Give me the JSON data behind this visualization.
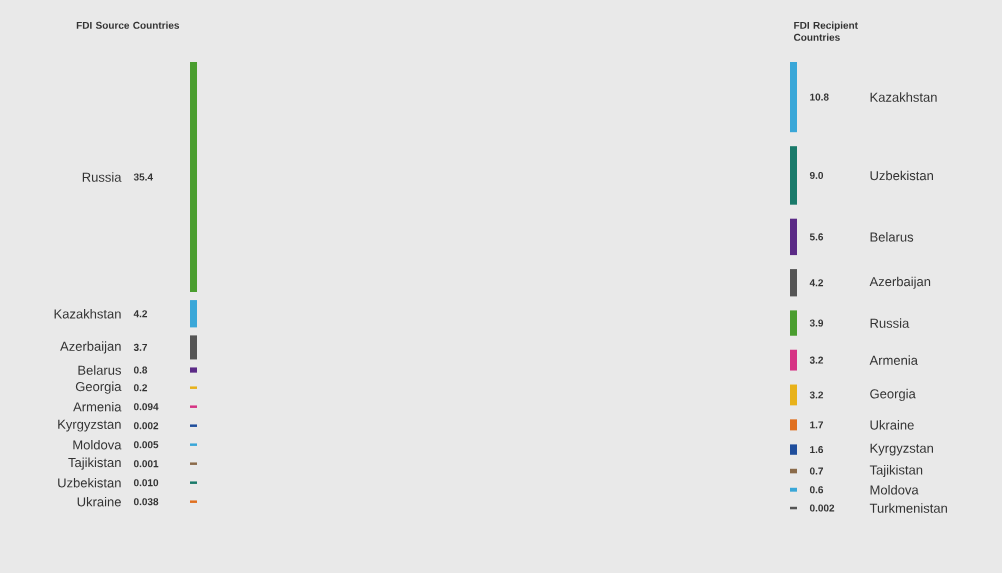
{
  "chart_data": [
    {
      "type": "other",
      "title": "FDI Source Countries",
      "categories": [
        "Russia",
        "Kazakhstan",
        "Azerbaijan",
        "Belarus",
        "Georgia",
        "Armenia",
        "Kyrgyzstan",
        "Moldova",
        "Tajikistan",
        "Uzbekistan",
        "Ukraine"
      ],
      "values": [
        35.4,
        4.2,
        3.7,
        0.8,
        0.2,
        0.094,
        0.002,
        0.005,
        0.001,
        0.01,
        0.038
      ],
      "value_labels": [
        "35.4",
        "4.2",
        "3.7",
        "0.8",
        "0.2",
        "0.094",
        "0.002",
        "0.005",
        "0.001",
        "0.010",
        "0.038"
      ],
      "colors": [
        "#4a9e2f",
        "#3aa7d8",
        "#555555",
        "#5b2a86",
        "#e8b21a",
        "#d63384",
        "#1f4e9c",
        "#3aa7d8",
        "#8b6b4a",
        "#1a7a6a",
        "#e07020"
      ]
    },
    {
      "type": "other",
      "title": "FDI Recipient Countries",
      "categories": [
        "Kazakhstan",
        "Uzbekistan",
        "Belarus",
        "Azerbaijan",
        "Russia",
        "Armenia",
        "Georgia",
        "Ukraine",
        "Kyrgyzstan",
        "Tajikistan",
        "Moldova",
        "Turkmenistan"
      ],
      "values": [
        10.8,
        9.0,
        5.6,
        4.2,
        3.9,
        3.2,
        3.2,
        1.7,
        1.6,
        0.7,
        0.6,
        0.002
      ],
      "value_labels": [
        "10.8",
        "9.0",
        "5.6",
        "4.2",
        "3.9",
        "3.2",
        "3.2",
        "1.7",
        "1.6",
        "0.7",
        "0.6",
        "0.002"
      ],
      "colors": [
        "#3aa7d8",
        "#1a7a6a",
        "#5b2a86",
        "#555555",
        "#4a9e2f",
        "#d63384",
        "#e8b21a",
        "#e07020",
        "#1f4e9c",
        "#8b6b4a",
        "#3aa7d8",
        "#555555"
      ]
    }
  ]
}
